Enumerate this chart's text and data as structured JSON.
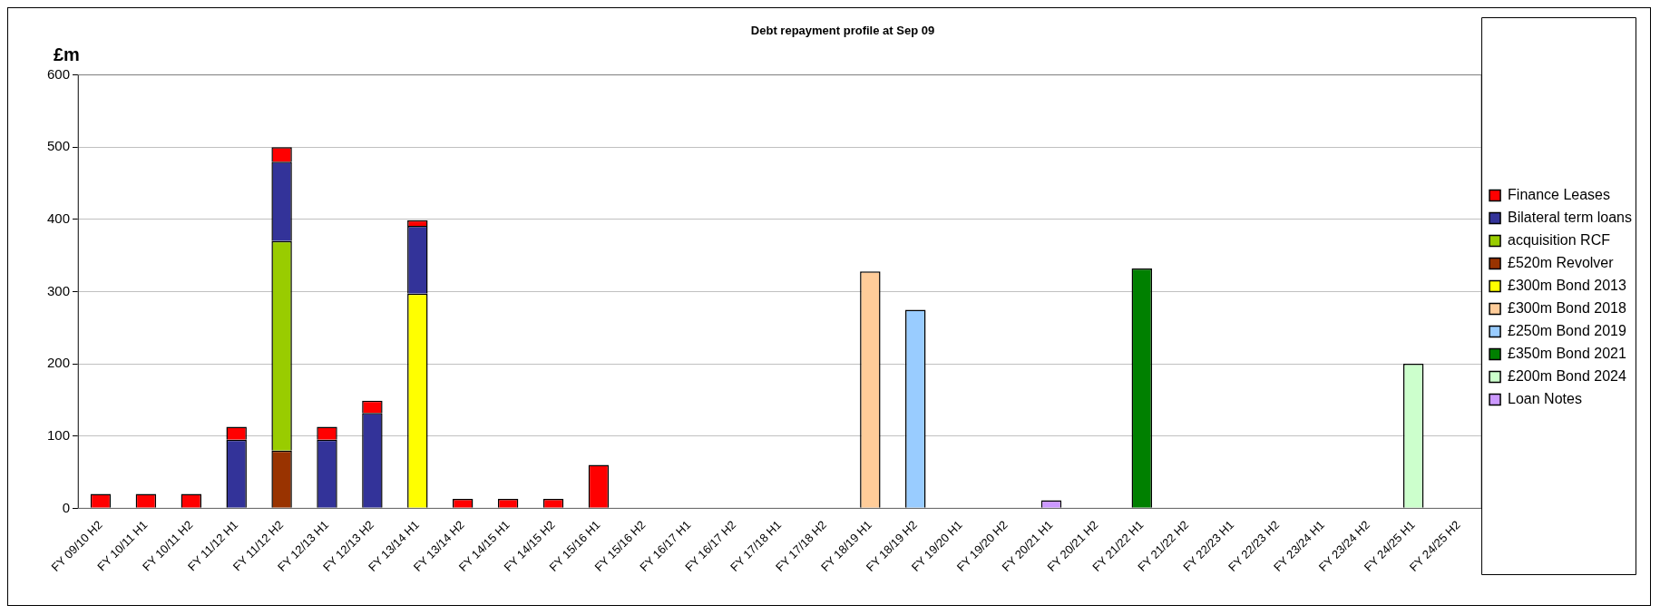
{
  "chart_data": {
    "type": "bar",
    "title": "Debt repayment profile at Sep 09",
    "ylabel": "£m",
    "categories": [
      "FY 09/10 H2",
      "FY 10/11 H1",
      "FY 10/11 H2",
      "FY 11/12 H1",
      "FY 11/12 H2",
      "FY 12/13 H1",
      "FY 12/13 H2",
      "FY 13/14 H1",
      "FY 13/14 H2",
      "FY 14/15 H1",
      "FY 14/15 H2",
      "FY 15/16 H1",
      "FY 15/16 H2",
      "FY 16/17 H1",
      "FY 16/17 H2",
      "FY 17/18 H1",
      "FY 17/18 H2",
      "FY 18/19 H1",
      "FY 18/19 H2",
      "FY 19/20 H1",
      "FY 19/20 H2",
      "FY 20/21 H1",
      "FY 20/21 H2",
      "FY 21/22 H1",
      "FY 21/22 H2",
      "FY 22/23 H1",
      "FY 22/23 H2",
      "FY 23/24 H1",
      "FY 23/24 H2",
      "FY 24/25 H1",
      "FY 24/25 H2"
    ],
    "stacked": true,
    "ylim": [
      0,
      600
    ],
    "yticks": [
      0,
      100,
      200,
      300,
      400,
      500,
      600
    ],
    "grid": "y",
    "legend": "right",
    "series": [
      {
        "name": "Loan Notes",
        "color": "#cc99ff",
        "values": [
          null,
          null,
          null,
          null,
          null,
          null,
          null,
          null,
          null,
          null,
          null,
          null,
          null,
          null,
          null,
          null,
          null,
          null,
          null,
          null,
          null,
          11,
          null,
          null,
          null,
          null,
          null,
          null,
          null,
          null,
          null
        ]
      },
      {
        "name": "£200m Bond 2024",
        "color": "#ccffcc",
        "values": [
          null,
          null,
          null,
          null,
          null,
          null,
          null,
          null,
          null,
          null,
          null,
          null,
          null,
          null,
          null,
          null,
          null,
          null,
          null,
          null,
          null,
          null,
          null,
          null,
          null,
          null,
          null,
          null,
          null,
          200,
          null
        ]
      },
      {
        "name": "£350m Bond 2021",
        "color": "#008000",
        "values": [
          null,
          null,
          null,
          null,
          null,
          null,
          null,
          null,
          null,
          null,
          null,
          null,
          null,
          null,
          null,
          null,
          null,
          null,
          null,
          null,
          null,
          null,
          null,
          332,
          null,
          null,
          null,
          null,
          null,
          null,
          null
        ]
      },
      {
        "name": "£250m Bond 2019",
        "color": "#99ccff",
        "values": [
          null,
          null,
          null,
          null,
          null,
          null,
          null,
          null,
          null,
          null,
          null,
          null,
          null,
          null,
          null,
          null,
          null,
          null,
          275,
          null,
          null,
          null,
          null,
          null,
          null,
          null,
          null,
          null,
          null,
          null,
          null
        ]
      },
      {
        "name": "£300m Bond 2018",
        "color": "#ffcc99",
        "values": [
          null,
          null,
          null,
          null,
          null,
          null,
          null,
          null,
          null,
          null,
          null,
          null,
          null,
          null,
          null,
          null,
          null,
          328,
          null,
          null,
          null,
          null,
          null,
          null,
          null,
          null,
          null,
          null,
          null,
          null,
          null
        ]
      },
      {
        "name": "£300m Bond 2013",
        "color": "#ffff00",
        "values": [
          null,
          null,
          null,
          null,
          null,
          null,
          null,
          297,
          null,
          null,
          null,
          null,
          null,
          null,
          null,
          null,
          null,
          null,
          null,
          null,
          null,
          null,
          null,
          null,
          null,
          null,
          null,
          null,
          null,
          null,
          null
        ]
      },
      {
        "name": "£520m Revolver",
        "color": "#993300",
        "values": [
          null,
          null,
          null,
          null,
          80,
          null,
          null,
          null,
          null,
          null,
          null,
          null,
          null,
          null,
          null,
          null,
          null,
          null,
          null,
          null,
          null,
          null,
          null,
          null,
          null,
          null,
          null,
          null,
          null,
          null,
          null
        ]
      },
      {
        "name": "acquisition RCF",
        "color": "#99cc00",
        "values": [
          null,
          null,
          null,
          null,
          290,
          null,
          null,
          null,
          null,
          null,
          null,
          null,
          null,
          null,
          null,
          null,
          null,
          null,
          null,
          null,
          null,
          null,
          null,
          null,
          null,
          null,
          null,
          null,
          null,
          null,
          null
        ]
      },
      {
        "name": "Bilateral term loans",
        "color": "#333399",
        "values": [
          null,
          null,
          null,
          95,
          110,
          95,
          132,
          94,
          null,
          null,
          null,
          null,
          null,
          null,
          null,
          null,
          null,
          null,
          null,
          null,
          null,
          null,
          null,
          null,
          null,
          null,
          null,
          null,
          null,
          null,
          null
        ]
      },
      {
        "name": "Finance Leases",
        "color": "#ff0000",
        "values": [
          20,
          20,
          20,
          18,
          20,
          18,
          17,
          8,
          13,
          13,
          13,
          60,
          null,
          null,
          null,
          null,
          null,
          null,
          null,
          null,
          null,
          null,
          null,
          null,
          null,
          null,
          null,
          null,
          null,
          null,
          null
        ]
      }
    ]
  }
}
